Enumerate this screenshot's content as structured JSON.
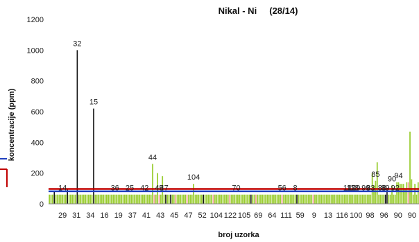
{
  "chart_data": {
    "type": "bar",
    "title": "Nikal - Ni     (28/14)",
    "xlabel": "broj uzorka",
    "ylabel": "koncentracije (ppm)",
    "ylim": [
      0,
      1200
    ],
    "yticks": [
      "0",
      "200",
      "400",
      "600",
      "800",
      "1000",
      "1200"
    ],
    "grid": false,
    "legend": "none",
    "x_tick_labels": [
      "29",
      "31",
      "34",
      "16",
      "19",
      "37",
      "41",
      "43",
      "45",
      "47",
      "52",
      "104",
      "122",
      "105",
      "69",
      "64",
      "111",
      "59",
      "9",
      "13",
      "116",
      "100",
      "98",
      "96",
      "90",
      "90"
    ],
    "reference_lines": [
      {
        "value": 97,
        "color": "#c00000"
      },
      {
        "value": 82,
        "color": "#1f3fbf"
      }
    ],
    "colors": {
      "green": "#9acd32",
      "pink": "#f4a6a0",
      "black": "#111111"
    },
    "values": [
      60,
      60,
      60,
      80,
      60,
      60,
      60,
      60,
      60,
      60,
      60,
      100,
      60,
      60,
      60,
      60,
      60,
      1000,
      60,
      60,
      60,
      60,
      60,
      60,
      60,
      60,
      60,
      620,
      60,
      60,
      60,
      60,
      60,
      60,
      60,
      60,
      60,
      60,
      60,
      60,
      60,
      60,
      60,
      60,
      60,
      60,
      60,
      60,
      60,
      60,
      60,
      60,
      60,
      60,
      60,
      60,
      60,
      60,
      60,
      60,
      60,
      60,
      60,
      260,
      60,
      60,
      200,
      60,
      60,
      180,
      60,
      60,
      60,
      60,
      60,
      60,
      60,
      60,
      60,
      60,
      60,
      60,
      60,
      60,
      60,
      60,
      60,
      60,
      130,
      60,
      60,
      60,
      60,
      60,
      60,
      60,
      60,
      60,
      60,
      60,
      60,
      60,
      60,
      60,
      60,
      60,
      60,
      60,
      60,
      60,
      60,
      60,
      60,
      60,
      60,
      60,
      60,
      60,
      60,
      60,
      60,
      60,
      60,
      60,
      60,
      60,
      60,
      60,
      60,
      60,
      60,
      60,
      60,
      60,
      60,
      60,
      60,
      60,
      60,
      60,
      60,
      60,
      60,
      60,
      60,
      60,
      60,
      60,
      60,
      60,
      60,
      60,
      60,
      60,
      60,
      60,
      60,
      60,
      60,
      60,
      60,
      60,
      60,
      60,
      60,
      60,
      60,
      60,
      60,
      60,
      60,
      60,
      60,
      60,
      60,
      60,
      60,
      60,
      60,
      60,
      60,
      60,
      60,
      60,
      60,
      60,
      60,
      60,
      60,
      60,
      60,
      60,
      60,
      60,
      60,
      60,
      60,
      200,
      120,
      150,
      270,
      60,
      60,
      60,
      60,
      60,
      100,
      60,
      60,
      120,
      60,
      60,
      140,
      140,
      130,
      130,
      130,
      100,
      140,
      140,
      470,
      160,
      60,
      130,
      60,
      140
    ],
    "bar_colors": "gggkgggggggkgggggkgggggggggkggggggggggggggggggggggggggggggggggggpggpgggkggkggpggggggpgggggggggkgggggpgggggggggpggggggggggggkggpgggggggggggggggpggggggggkgggggggggpgggggggggggggggggggggggggggggggggggggggggggkkggggggggggggpggggggggggggggggggggp",
    "data_labels": [
      {
        "i": 8,
        "text": "14"
      },
      {
        "i": 17,
        "text": "32"
      },
      {
        "i": 27,
        "text": "15"
      },
      {
        "i": 40,
        "text": "36"
      },
      {
        "i": 49,
        "text": "25"
      },
      {
        "i": 58,
        "text": "42"
      },
      {
        "i": 63,
        "text": "44"
      },
      {
        "i": 67,
        "text": "45"
      },
      {
        "i": 70,
        "text": "47"
      },
      {
        "i": 88,
        "text": "104"
      },
      {
        "i": 114,
        "text": "70"
      },
      {
        "i": 142,
        "text": "56"
      },
      {
        "i": 150,
        "text": "8"
      },
      {
        "i": 183,
        "text": "117"
      },
      {
        "i": 186,
        "text": "119"
      },
      {
        "i": 185,
        "text": "118"
      },
      {
        "i": 193,
        "text": "99"
      },
      {
        "i": 196,
        "text": "83"
      },
      {
        "i": 199,
        "text": "85"
      },
      {
        "i": 203,
        "text": "88"
      },
      {
        "i": 205,
        "text": "89"
      },
      {
        "i": 209,
        "text": "90"
      },
      {
        "i": 211,
        "text": "92"
      },
      {
        "i": 213,
        "text": "94"
      }
    ]
  }
}
